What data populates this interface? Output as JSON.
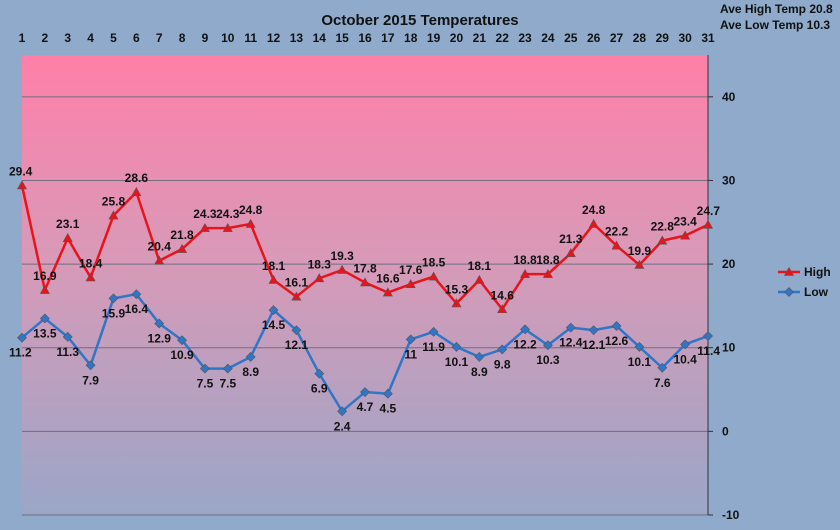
{
  "chart_data": {
    "type": "line",
    "title": "October 2015 Temperatures",
    "summary": [
      "Ave High Temp 20.8",
      "Ave Low Temp 10.3"
    ],
    "x": [
      1,
      2,
      3,
      4,
      5,
      6,
      7,
      8,
      9,
      10,
      11,
      12,
      13,
      14,
      15,
      16,
      17,
      18,
      19,
      20,
      21,
      22,
      23,
      24,
      25,
      26,
      27,
      28,
      29,
      30,
      31
    ],
    "xlabels": [
      "1",
      "2",
      "3",
      "4",
      "5",
      "6",
      "7",
      "8",
      "9",
      "10",
      "11",
      "12",
      "13",
      "14",
      "15",
      "16",
      "17",
      "18",
      "19",
      "20",
      "21",
      "22",
      "23",
      "24",
      "25",
      "26",
      "27",
      "28",
      "29",
      "30",
      "31"
    ],
    "ylim": [
      -10,
      45
    ],
    "yticks": [
      -10,
      0,
      10,
      20,
      30,
      40
    ],
    "ytick_labels": [
      "-10",
      "0",
      "10",
      "20",
      "30",
      "40"
    ],
    "grid": true,
    "legend_position": "right",
    "series": [
      {
        "name": "High",
        "color": "#e8141c",
        "marker": "triangle",
        "values": [
          29.4,
          16.9,
          23.1,
          18.4,
          25.8,
          28.6,
          20.4,
          21.8,
          24.3,
          24.3,
          24.8,
          18.1,
          16.1,
          18.3,
          19.3,
          17.8,
          16.6,
          17.6,
          18.5,
          15.3,
          18.1,
          14.6,
          18.8,
          18.8,
          21.3,
          24.8,
          22.2,
          19.9,
          22.8,
          23.4,
          24.7
        ],
        "labels": [
          "29.4",
          "16.9",
          "23.1",
          "18.4",
          "25.8",
          "28.6",
          "20.4",
          "21.8",
          "24.3",
          "24.3",
          "24.8",
          "18.1",
          "16.1",
          "18.3",
          "19.3",
          "17.8",
          "16.6",
          "17.6",
          "18.5",
          "15.3",
          "18.1",
          "14.6",
          "18.8",
          "18.8",
          "21.3",
          "24.8",
          "22.2",
          "19.9",
          "22.8",
          "23.4",
          "24.7"
        ]
      },
      {
        "name": "Low",
        "color": "#2f75c8",
        "marker": "diamond",
        "values": [
          11.2,
          13.5,
          11.3,
          7.9,
          15.9,
          16.4,
          12.9,
          10.9,
          7.5,
          7.5,
          8.9,
          14.5,
          12.1,
          6.9,
          2.4,
          4.7,
          4.5,
          11,
          11.9,
          10.1,
          8.9,
          9.8,
          12.2,
          10.3,
          12.4,
          12.1,
          12.6,
          10.1,
          7.6,
          10.4,
          11.4
        ],
        "labels": [
          "11.2",
          "13.5",
          "11.3",
          "7.9",
          "15.9",
          "16.4",
          "12.9",
          "10.9",
          "7.5",
          "7.5",
          "8.9",
          "14.5",
          "12.1",
          "6.9",
          "2.4",
          "4.7",
          "4.5",
          "11",
          "11.9",
          "10.1",
          "8.9",
          "9.8",
          "12.2",
          "10.3",
          "12.4",
          "12.1",
          "12.6",
          "10.1",
          "7.6",
          "10.4",
          "11.4"
        ]
      }
    ]
  }
}
